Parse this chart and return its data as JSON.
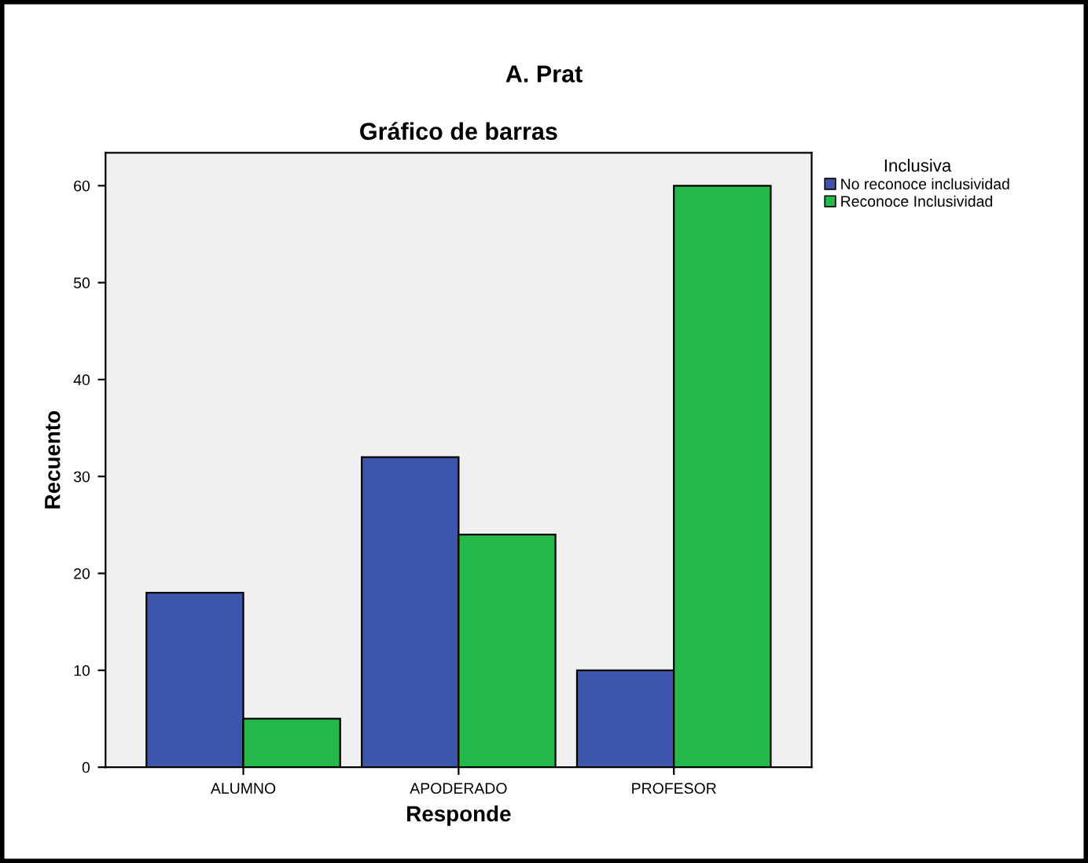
{
  "chart_data": {
    "type": "bar",
    "title": "A. Prat",
    "subtitle": "Gráfico de barras",
    "xlabel": "Responde",
    "ylabel": "Recuento",
    "legend_title": "Inclusiva",
    "categories": [
      "ALUMNO",
      "APODERADO",
      "PROFESOR"
    ],
    "series": [
      {
        "name": "No reconoce inclusividad",
        "color": "#3d56ab",
        "values": [
          18,
          32,
          10
        ]
      },
      {
        "name": "Reconoce Inclusividad",
        "color": "#25b94a",
        "values": [
          5,
          24,
          60
        ]
      }
    ],
    "ylim": [
      0,
      63.4
    ],
    "yticks": [
      0,
      10,
      20,
      30,
      40,
      50,
      60
    ],
    "grid": false,
    "legend": "top right"
  }
}
